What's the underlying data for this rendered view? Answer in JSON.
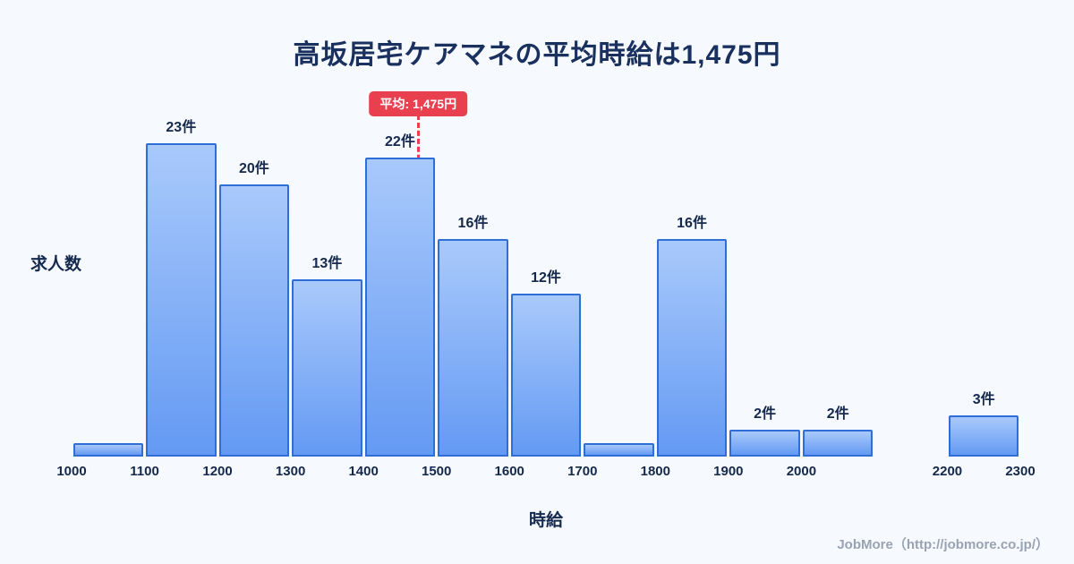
{
  "page": {
    "footer": "JobMore（http://jobmore.co.jp/）"
  },
  "chart_data": {
    "type": "bar",
    "title": "高坂居宅ケアマネの平均時給は1,475円",
    "xlabel": "時給",
    "ylabel": "求人数",
    "x_min": 1000,
    "x_max": 2300,
    "ylim": [
      0,
      25
    ],
    "grid": false,
    "legend": "none",
    "bars": [
      {
        "range_from": 1000,
        "range_to": 1100,
        "count": 1,
        "label": ""
      },
      {
        "range_from": 1100,
        "range_to": 1200,
        "count": 23,
        "label": "23件"
      },
      {
        "range_from": 1200,
        "range_to": 1300,
        "count": 20,
        "label": "20件"
      },
      {
        "range_from": 1300,
        "range_to": 1400,
        "count": 13,
        "label": "13件"
      },
      {
        "range_from": 1400,
        "range_to": 1500,
        "count": 22,
        "label": "22件"
      },
      {
        "range_from": 1500,
        "range_to": 1600,
        "count": 16,
        "label": "16件"
      },
      {
        "range_from": 1600,
        "range_to": 1700,
        "count": 12,
        "label": "12件"
      },
      {
        "range_from": 1700,
        "range_to": 1800,
        "count": 1,
        "label": ""
      },
      {
        "range_from": 1800,
        "range_to": 1900,
        "count": 16,
        "label": "16件"
      },
      {
        "range_from": 1900,
        "range_to": 2000,
        "count": 2,
        "label": "2件"
      },
      {
        "range_from": 2000,
        "range_to": 2100,
        "count": 2,
        "label": "2件"
      },
      {
        "range_from": 2200,
        "range_to": 2300,
        "count": 3,
        "label": "3件"
      }
    ],
    "x_ticks": [
      1000,
      1100,
      1200,
      1300,
      1400,
      1500,
      1600,
      1700,
      1800,
      1900,
      2000,
      2200,
      2300
    ],
    "average": {
      "value": 1475,
      "label": "平均: 1,475円"
    },
    "colors": {
      "background": "#f6f9fd",
      "bar_fill_top": "#a9c9fb",
      "bar_fill_bottom": "#649af3",
      "bar_border": "#2e6ed6",
      "average_accent": "#e8404f",
      "title_text": "#1a3160",
      "label_text": "#15294d",
      "footer_text": "#9aa3b2"
    }
  }
}
